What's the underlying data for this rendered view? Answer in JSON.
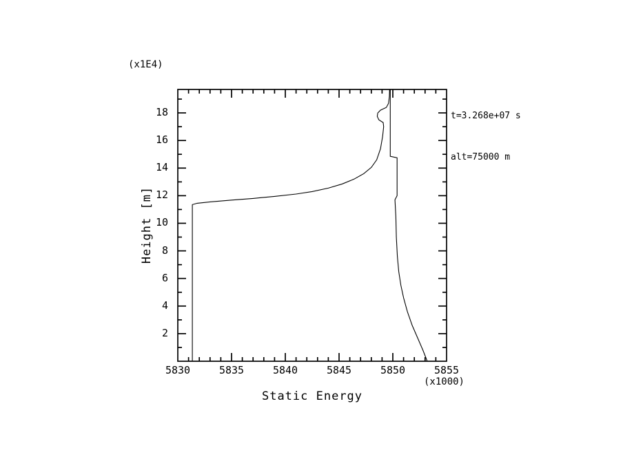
{
  "chart_data": {
    "type": "line",
    "title": "",
    "xlabel": "Static Energy",
    "ylabel": "Height [m]",
    "x_scale_label": "(x1000)",
    "y_scale_label": "(x1E4)",
    "annotations": [
      "t=3.268e+07 s",
      "alt=75000 m"
    ],
    "xlim": [
      5830,
      5855
    ],
    "ylim": [
      0,
      19.7
    ],
    "xticks": [
      5830,
      5835,
      5840,
      5845,
      5850,
      5855
    ],
    "xminor_step": 1,
    "yticks": [
      2,
      4,
      6,
      8,
      10,
      12,
      14,
      16,
      18
    ],
    "yminor_step": 1,
    "grid": false,
    "legend": "none",
    "line_color": "#000000",
    "background_color": "#ffffff",
    "series": [
      {
        "name": "static-energy-profile",
        "points": [
          [
            5831.35,
            0.0
          ],
          [
            5831.35,
            11.35
          ],
          [
            5831.8,
            11.45
          ],
          [
            5833.0,
            11.55
          ],
          [
            5835.0,
            11.68
          ],
          [
            5837.0,
            11.8
          ],
          [
            5839.0,
            11.95
          ],
          [
            5841.0,
            12.12
          ],
          [
            5842.5,
            12.3
          ],
          [
            5844.0,
            12.55
          ],
          [
            5845.3,
            12.85
          ],
          [
            5846.4,
            13.2
          ],
          [
            5847.3,
            13.6
          ],
          [
            5848.0,
            14.05
          ],
          [
            5848.5,
            14.6
          ],
          [
            5848.85,
            15.4
          ],
          [
            5849.05,
            16.3
          ],
          [
            5849.15,
            17.0
          ],
          [
            5849.1,
            17.3
          ],
          [
            5848.7,
            17.5
          ],
          [
            5848.55,
            17.75
          ],
          [
            5848.6,
            18.0
          ],
          [
            5848.85,
            18.2
          ],
          [
            5849.4,
            18.4
          ],
          [
            5849.6,
            18.7
          ],
          [
            5849.68,
            19.2
          ],
          [
            5849.7,
            19.7
          ],
          [
            5849.76,
            19.7
          ],
          [
            5849.76,
            14.85
          ],
          [
            5850.4,
            14.75
          ],
          [
            5850.4,
            12.0
          ],
          [
            5850.2,
            11.7
          ],
          [
            5850.28,
            10.5
          ],
          [
            5850.33,
            9.0
          ],
          [
            5850.42,
            7.6
          ],
          [
            5850.55,
            6.5
          ],
          [
            5850.75,
            5.5
          ],
          [
            5851.0,
            4.6
          ],
          [
            5851.35,
            3.6
          ],
          [
            5851.8,
            2.6
          ],
          [
            5852.3,
            1.7
          ],
          [
            5852.8,
            0.8
          ],
          [
            5853.1,
            0.2
          ],
          [
            5853.2,
            0.0
          ]
        ]
      }
    ]
  }
}
